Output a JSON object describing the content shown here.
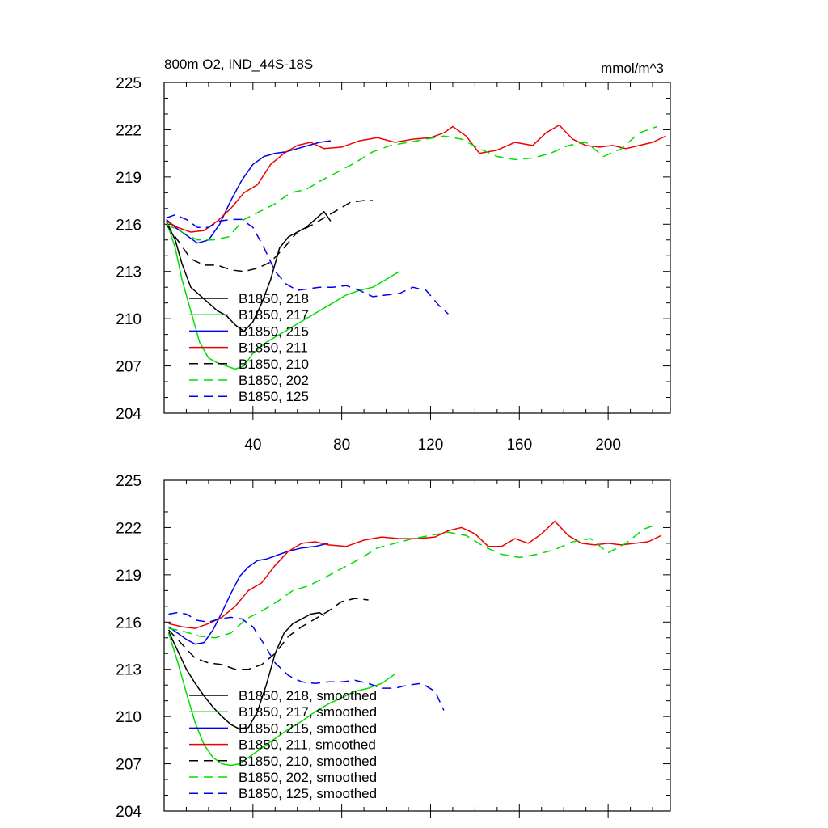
{
  "chart_data": [
    {
      "type": "line",
      "title": "800m O2, IND_44S-18S",
      "units": "mmol/m^3",
      "xlim": [
        0,
        228
      ],
      "ylim": [
        204,
        225
      ],
      "yticks": [
        204,
        207,
        210,
        213,
        216,
        219,
        222,
        225
      ],
      "xticks": [
        40,
        80,
        120,
        160,
        200
      ],
      "show_xtick_labels": true,
      "series": [
        {
          "name": "B1850, 218",
          "color": "#000000",
          "dash": "solid",
          "x": [
            1,
            5,
            8,
            12,
            16,
            20,
            24,
            28,
            32,
            36,
            40,
            44,
            48,
            52,
            56,
            60,
            64,
            68,
            72,
            75
          ],
          "y": [
            216.2,
            215.0,
            213.5,
            212.0,
            211.5,
            211.0,
            210.5,
            210.2,
            209.6,
            209.2,
            209.8,
            211.0,
            212.5,
            214.5,
            215.2,
            215.5,
            215.8,
            216.3,
            216.8,
            216.2
          ]
        },
        {
          "name": "B1850, 217",
          "color": "#00dd00",
          "dash": "solid",
          "x": [
            1,
            5,
            8,
            12,
            16,
            20,
            24,
            28,
            32,
            36,
            40,
            46,
            52,
            58,
            64,
            70,
            76,
            82,
            88,
            94,
            100,
            106
          ],
          "y": [
            216.2,
            214.5,
            212.5,
            210.5,
            208.5,
            207.5,
            207.2,
            207.0,
            206.8,
            207.0,
            207.8,
            208.5,
            209.0,
            209.5,
            210.0,
            210.5,
            211.0,
            211.5,
            211.8,
            212.0,
            212.5,
            213.0
          ]
        },
        {
          "name": "B1850, 215",
          "color": "#0000ee",
          "dash": "solid",
          "x": [
            1,
            5,
            10,
            15,
            20,
            25,
            30,
            35,
            40,
            45,
            50,
            55,
            60,
            65,
            70,
            75
          ],
          "y": [
            216.3,
            215.8,
            215.3,
            214.8,
            215.0,
            216.0,
            217.5,
            218.8,
            219.8,
            220.3,
            220.5,
            220.6,
            220.8,
            221.0,
            221.2,
            221.3
          ]
        },
        {
          "name": "B1850, 211",
          "color": "#ee0000",
          "dash": "solid",
          "x": [
            1,
            6,
            12,
            18,
            24,
            30,
            36,
            42,
            48,
            54,
            60,
            66,
            72,
            80,
            88,
            96,
            104,
            112,
            120,
            126,
            130,
            136,
            142,
            150,
            158,
            166,
            172,
            178,
            184,
            190,
            196,
            202,
            208,
            214,
            220,
            226
          ],
          "y": [
            216.2,
            215.8,
            215.5,
            215.6,
            216.2,
            217.0,
            218.0,
            218.5,
            219.8,
            220.5,
            221.0,
            221.2,
            220.8,
            220.9,
            221.3,
            221.5,
            221.2,
            221.4,
            221.5,
            221.8,
            222.2,
            221.6,
            220.5,
            220.7,
            221.2,
            221.0,
            221.8,
            222.3,
            221.4,
            221.0,
            220.9,
            221.0,
            220.8,
            221.0,
            221.2,
            221.6
          ]
        },
        {
          "name": "B1850, 210",
          "color": "#000000",
          "dash": "dashed",
          "x": [
            1,
            6,
            12,
            18,
            24,
            30,
            36,
            42,
            48,
            54,
            60,
            66,
            72,
            78,
            84,
            90,
            94
          ],
          "y": [
            216.0,
            215.0,
            213.8,
            213.4,
            213.4,
            213.1,
            213.0,
            213.2,
            213.6,
            214.5,
            215.5,
            215.9,
            216.4,
            216.9,
            217.4,
            217.5,
            217.5
          ]
        },
        {
          "name": "B1850, 202",
          "color": "#00dd00",
          "dash": "dashed",
          "x": [
            1,
            8,
            15,
            22,
            29,
            36,
            43,
            50,
            57,
            64,
            71,
            78,
            86,
            94,
            102,
            110,
            118,
            126,
            134,
            142,
            150,
            158,
            166,
            174,
            182,
            190,
            198,
            206,
            214,
            222
          ],
          "y": [
            216.0,
            215.5,
            215.0,
            215.0,
            215.2,
            216.3,
            216.8,
            217.3,
            218.0,
            218.2,
            218.8,
            219.3,
            219.9,
            220.6,
            221.0,
            221.2,
            221.4,
            221.6,
            221.4,
            220.8,
            220.3,
            220.1,
            220.2,
            220.5,
            221.0,
            221.2,
            220.3,
            220.8,
            221.8,
            222.2
          ]
        },
        {
          "name": "B1850, 125",
          "color": "#0000ee",
          "dash": "dashed",
          "x": [
            1,
            5,
            10,
            15,
            20,
            25,
            30,
            35,
            40,
            45,
            50,
            55,
            60,
            65,
            70,
            76,
            82,
            88,
            94,
            100,
            106,
            112,
            118,
            124,
            128
          ],
          "y": [
            216.4,
            216.6,
            216.3,
            215.8,
            215.8,
            216.2,
            216.3,
            216.3,
            215.8,
            214.5,
            213.0,
            212.2,
            211.8,
            211.9,
            212.0,
            212.0,
            212.1,
            211.8,
            211.4,
            211.5,
            211.6,
            212.0,
            211.8,
            210.8,
            210.3
          ]
        }
      ]
    },
    {
      "type": "line",
      "xlim": [
        0,
        228
      ],
      "ylim": [
        204,
        225
      ],
      "yticks": [
        204,
        207,
        210,
        213,
        216,
        219,
        222,
        225
      ],
      "xticks": [
        40,
        80,
        120,
        160,
        200
      ],
      "show_xtick_labels": false,
      "series": [
        {
          "name": "B1850, 218, smoothed",
          "color": "#000000",
          "dash": "solid",
          "x": [
            2,
            6,
            10,
            14,
            18,
            22,
            26,
            30,
            34,
            38,
            42,
            46,
            50,
            54,
            58,
            62,
            66,
            70,
            72
          ],
          "y": [
            215.4,
            214.2,
            213.0,
            212.1,
            211.3,
            210.6,
            210.0,
            209.5,
            209.2,
            209.3,
            210.3,
            212.0,
            214.0,
            215.3,
            215.9,
            216.2,
            216.5,
            216.6,
            216.4
          ]
        },
        {
          "name": "B1850, 217, smoothed",
          "color": "#00dd00",
          "dash": "solid",
          "x": [
            2,
            6,
            10,
            14,
            18,
            22,
            26,
            30,
            34,
            38,
            44,
            50,
            56,
            62,
            68,
            74,
            80,
            86,
            92,
            98,
            104
          ],
          "y": [
            215.3,
            213.5,
            211.5,
            209.6,
            208.2,
            207.4,
            207.0,
            206.9,
            207.0,
            207.4,
            208.0,
            208.6,
            209.2,
            209.7,
            210.3,
            210.8,
            211.2,
            211.6,
            211.8,
            212.1,
            212.7
          ]
        },
        {
          "name": "B1850, 215, smoothed",
          "color": "#0000ee",
          "dash": "solid",
          "x": [
            2,
            6,
            10,
            14,
            18,
            22,
            26,
            30,
            34,
            38,
            42,
            46,
            50,
            56,
            62,
            68,
            74
          ],
          "y": [
            215.7,
            215.3,
            214.9,
            214.6,
            214.7,
            215.5,
            216.6,
            217.8,
            218.9,
            219.5,
            219.9,
            220.0,
            220.2,
            220.5,
            220.7,
            220.8,
            221.0
          ]
        },
        {
          "name": "B1850, 211, smoothed",
          "color": "#ee0000",
          "dash": "solid",
          "x": [
            2,
            8,
            14,
            20,
            26,
            32,
            38,
            44,
            50,
            56,
            62,
            68,
            74,
            82,
            90,
            98,
            106,
            114,
            122,
            128,
            134,
            140,
            146,
            152,
            158,
            164,
            170,
            176,
            182,
            188,
            194,
            200,
            206,
            212,
            218,
            224
          ],
          "y": [
            215.9,
            215.7,
            215.6,
            215.9,
            216.3,
            217.0,
            218.0,
            218.5,
            219.6,
            220.5,
            221.0,
            221.1,
            220.9,
            220.8,
            221.2,
            221.4,
            221.3,
            221.3,
            221.4,
            221.8,
            222.0,
            221.6,
            220.8,
            220.8,
            221.3,
            221.0,
            221.6,
            222.4,
            221.5,
            221.0,
            220.9,
            221.0,
            220.9,
            221.0,
            221.1,
            221.5
          ]
        },
        {
          "name": "B1850, 210, smoothed",
          "color": "#000000",
          "dash": "dashed",
          "x": [
            2,
            8,
            14,
            20,
            26,
            32,
            38,
            44,
            50,
            56,
            62,
            68,
            74,
            80,
            86,
            92
          ],
          "y": [
            215.5,
            214.6,
            213.7,
            213.4,
            213.3,
            213.0,
            213.0,
            213.3,
            214.0,
            215.1,
            215.7,
            216.2,
            216.7,
            217.3,
            217.5,
            217.4
          ]
        },
        {
          "name": "B1850, 202, smoothed",
          "color": "#00dd00",
          "dash": "dashed",
          "x": [
            2,
            9,
            16,
            23,
            30,
            37,
            44,
            51,
            58,
            65,
            72,
            80,
            88,
            96,
            104,
            112,
            120,
            128,
            136,
            144,
            152,
            160,
            168,
            176,
            184,
            192,
            200,
            208,
            216,
            222
          ],
          "y": [
            215.6,
            215.4,
            215.1,
            215.0,
            215.3,
            216.2,
            216.7,
            217.3,
            218.0,
            218.3,
            218.8,
            219.4,
            220.0,
            220.7,
            221.0,
            221.3,
            221.5,
            221.7,
            221.5,
            220.8,
            220.3,
            220.1,
            220.3,
            220.6,
            221.1,
            221.3,
            220.4,
            221.0,
            221.9,
            222.2
          ]
        },
        {
          "name": "B1850, 125, smoothed",
          "color": "#0000ee",
          "dash": "dashed",
          "x": [
            2,
            6,
            10,
            15,
            20,
            25,
            30,
            35,
            40,
            45,
            50,
            56,
            62,
            68,
            74,
            80,
            86,
            92,
            98,
            104,
            110,
            116,
            122,
            126
          ],
          "y": [
            216.5,
            216.6,
            216.5,
            216.1,
            216.0,
            216.2,
            216.3,
            216.2,
            215.7,
            214.6,
            213.4,
            212.6,
            212.2,
            212.1,
            212.2,
            212.2,
            212.3,
            212.1,
            211.8,
            211.8,
            212.0,
            212.1,
            211.6,
            210.4
          ]
        }
      ]
    }
  ]
}
